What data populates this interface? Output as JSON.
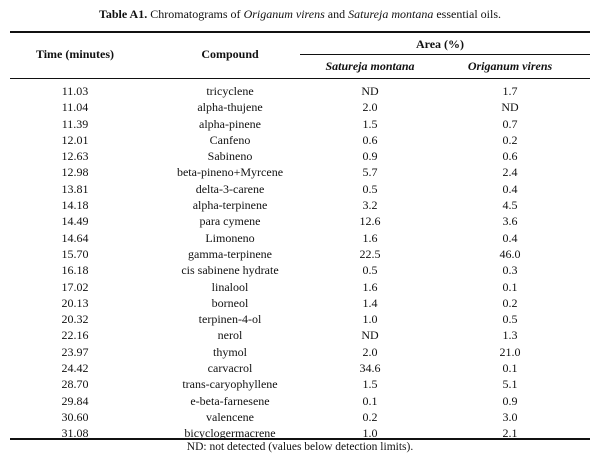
{
  "caption": {
    "label": "Table A1.",
    "text_1": " Chromatograms of ",
    "species_1": "Origanum virens",
    "text_2": " and ",
    "species_2": "Satureja montana",
    "text_3": " essential oils."
  },
  "header": {
    "time": "Time (minutes)",
    "compound": "Compound",
    "area": "Area (%)",
    "satureja": "Satureja montana",
    "origanum": "Origanum virens"
  },
  "rows": [
    {
      "time": "11.03",
      "compound": "tricyclene",
      "satureja": "ND",
      "origanum": "1.7"
    },
    {
      "time": "11.04",
      "compound": "alpha-thujene",
      "satureja": "2.0",
      "origanum": "ND"
    },
    {
      "time": "11.39",
      "compound": "alpha-pinene",
      "satureja": "1.5",
      "origanum": "0.7"
    },
    {
      "time": "12.01",
      "compound": "Canfeno",
      "satureja": "0.6",
      "origanum": "0.2"
    },
    {
      "time": "12.63",
      "compound": "Sabineno",
      "satureja": "0.9",
      "origanum": "0.6"
    },
    {
      "time": "12.98",
      "compound": "beta-pineno+Myrcene",
      "satureja": "5.7",
      "origanum": "2.4"
    },
    {
      "time": "13.81",
      "compound": "delta-3-carene",
      "satureja": "0.5",
      "origanum": "0.4"
    },
    {
      "time": "14.18",
      "compound": "alpha-terpinene",
      "satureja": "3.2",
      "origanum": "4.5"
    },
    {
      "time": "14.49",
      "compound": "para cymene",
      "satureja": "12.6",
      "origanum": "3.6"
    },
    {
      "time": "14.64",
      "compound": "Limoneno",
      "satureja": "1.6",
      "origanum": "0.4"
    },
    {
      "time": "15.70",
      "compound": "gamma-terpinene",
      "satureja": "22.5",
      "origanum": "46.0"
    },
    {
      "time": "16.18",
      "compound": "cis sabinene hydrate",
      "satureja": "0.5",
      "origanum": "0.3"
    },
    {
      "time": "17.02",
      "compound": "linalool",
      "satureja": "1.6",
      "origanum": "0.1"
    },
    {
      "time": "20.13",
      "compound": "borneol",
      "satureja": "1.4",
      "origanum": "0.2"
    },
    {
      "time": "20.32",
      "compound": "terpinen-4-ol",
      "satureja": "1.0",
      "origanum": "0.5"
    },
    {
      "time": "22.16",
      "compound": "nerol",
      "satureja": "ND",
      "origanum": "1.3"
    },
    {
      "time": "23.97",
      "compound": "thymol",
      "satureja": "2.0",
      "origanum": "21.0"
    },
    {
      "time": "24.42",
      "compound": "carvacrol",
      "satureja": "34.6",
      "origanum": "0.1"
    },
    {
      "time": "28.70",
      "compound": "trans-caryophyllene",
      "satureja": "1.5",
      "origanum": "5.1"
    },
    {
      "time": "29.84",
      "compound": "e-beta-farnesene",
      "satureja": "0.1",
      "origanum": "0.9"
    },
    {
      "time": "30.60",
      "compound": "valencene",
      "satureja": "0.2",
      "origanum": "3.0"
    },
    {
      "time": "31.08",
      "compound": "bicyclogermacrene",
      "satureja": "1.0",
      "origanum": "2.1"
    }
  ],
  "footnote": "ND: not detected (values below detection limits)."
}
